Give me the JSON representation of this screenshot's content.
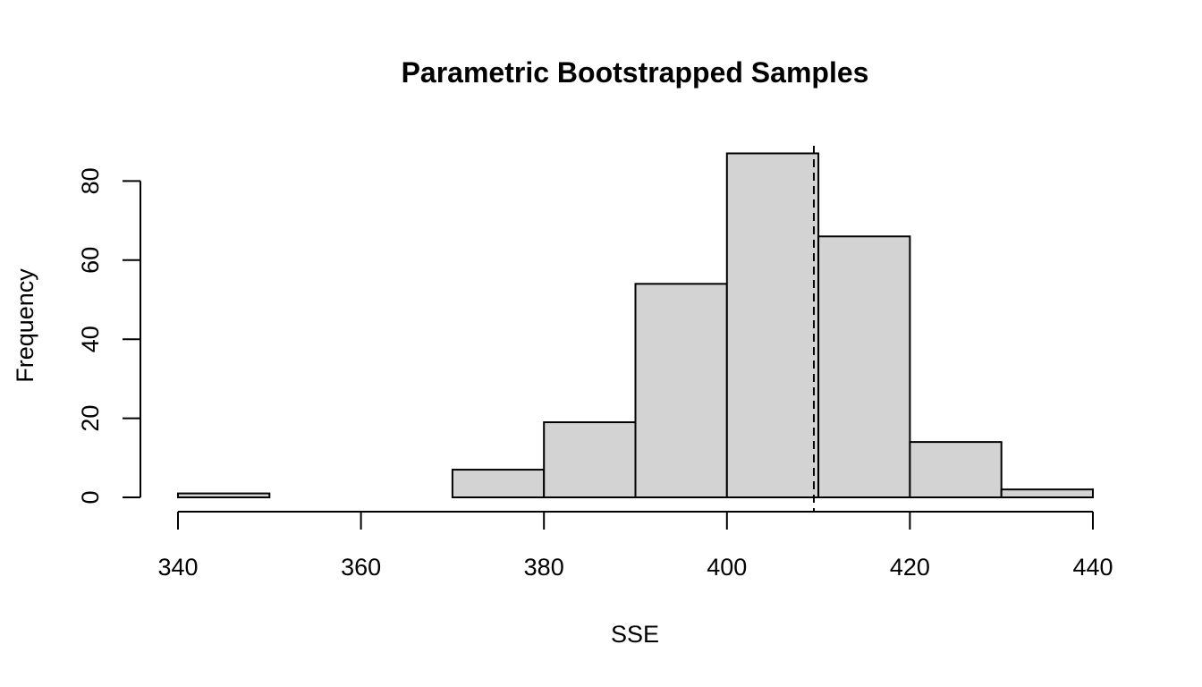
{
  "chart_data": {
    "type": "bar",
    "title": "Parametric Bootstrapped Samples",
    "xlabel": "SSE",
    "ylabel": "Frequency",
    "bins": [
      {
        "start": 340,
        "end": 350,
        "count": 1
      },
      {
        "start": 350,
        "end": 360,
        "count": 0
      },
      {
        "start": 360,
        "end": 370,
        "count": 0
      },
      {
        "start": 370,
        "end": 380,
        "count": 7
      },
      {
        "start": 380,
        "end": 390,
        "count": 19
      },
      {
        "start": 390,
        "end": 400,
        "count": 54
      },
      {
        "start": 400,
        "end": 410,
        "count": 87
      },
      {
        "start": 410,
        "end": 420,
        "count": 66
      },
      {
        "start": 420,
        "end": 430,
        "count": 14
      },
      {
        "start": 430,
        "end": 440,
        "count": 2
      }
    ],
    "xlim": [
      340,
      440
    ],
    "ylim": [
      0,
      87
    ],
    "x_ticks": [
      340,
      360,
      380,
      400,
      420,
      440
    ],
    "y_ticks": [
      0,
      20,
      40,
      60,
      80
    ],
    "reference_line": {
      "x": 409.5,
      "style": "dashed"
    },
    "grid": false,
    "colors": {
      "bar_fill": "#d3d3d3",
      "bar_stroke": "#000000"
    }
  }
}
